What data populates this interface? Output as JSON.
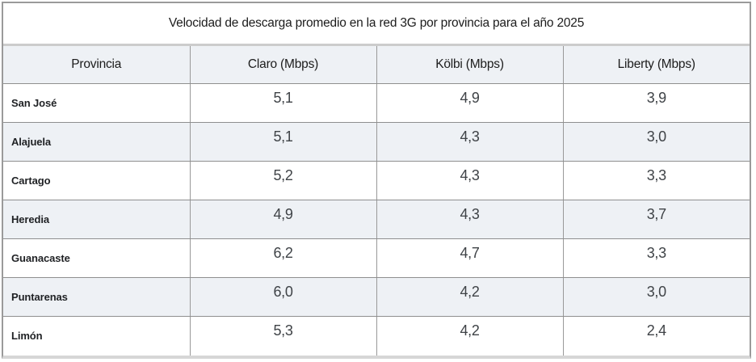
{
  "title": "Velocidad de descarga promedio en la red 3G por provincia para el año 2025",
  "table": {
    "columns": [
      "Provincia",
      "Claro (Mbps)",
      "Kölbi (Mbps)",
      "Liberty (Mbps)"
    ],
    "rows": [
      {
        "provincia": "San José",
        "claro": "5,1",
        "kolbi": "4,9",
        "liberty": "3,9"
      },
      {
        "provincia": "Alajuela",
        "claro": "5,1",
        "kolbi": "4,3",
        "liberty": "3,0"
      },
      {
        "provincia": "Cartago",
        "claro": "5,2",
        "kolbi": "4,3",
        "liberty": "3,3"
      },
      {
        "provincia": "Heredia",
        "claro": "4,9",
        "kolbi": "4,3",
        "liberty": "3,7"
      },
      {
        "provincia": "Guanacaste",
        "claro": "6,2",
        "kolbi": "4,7",
        "liberty": "3,3"
      },
      {
        "provincia": "Puntarenas",
        "claro": "6,0",
        "kolbi": "4,2",
        "liberty": "3,0"
      },
      {
        "provincia": "Limón",
        "claro": "5,3",
        "kolbi": "4,2",
        "liberty": "2,4"
      }
    ]
  },
  "colors": {
    "outer_border": "#9a9a9a",
    "inner_border": "#999999",
    "title_divider": "#cccccc",
    "bottom_band": "#d6d6d6",
    "stripe_background": "#eef1f5",
    "label_text": "#1f2124",
    "value_text": "#3f4347"
  }
}
